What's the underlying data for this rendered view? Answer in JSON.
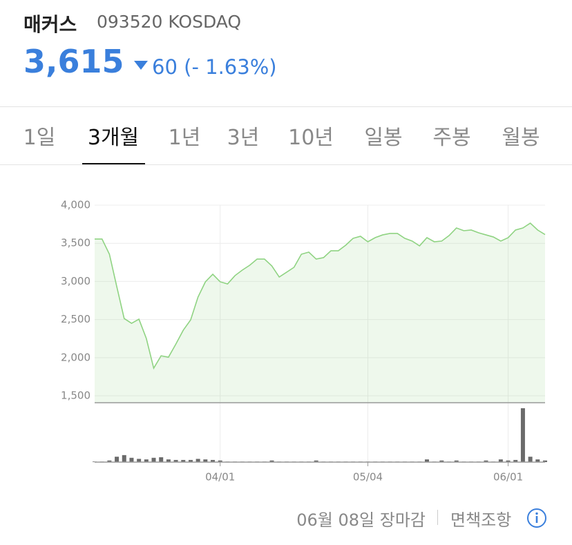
{
  "header": {
    "name": "매커스",
    "code": "093520 KOSDAQ",
    "price": "3,615",
    "change": "60",
    "change_pct": "(- 1.63%)"
  },
  "tabs": {
    "items": [
      "1일",
      "3개월",
      "1년",
      "3년",
      "10년",
      "일봉",
      "주봉",
      "월봉"
    ],
    "active": 1
  },
  "chart_data": {
    "type": "line",
    "categories": [
      null,
      null,
      null,
      null,
      null,
      null,
      null,
      null,
      null,
      null,
      null,
      null,
      null,
      null,
      null,
      null,
      null,
      "04/01",
      null,
      null,
      null,
      null,
      null,
      null,
      null,
      null,
      null,
      null,
      null,
      null,
      null,
      null,
      null,
      null,
      null,
      null,
      null,
      "05/04",
      null,
      null,
      null,
      null,
      null,
      null,
      null,
      null,
      null,
      null,
      null,
      null,
      null,
      null,
      null,
      null,
      null,
      null,
      "06/01",
      null,
      null,
      null,
      null,
      null
    ],
    "series": [
      {
        "color": "#8fd382",
        "values": [
          3556,
          3556,
          3357,
          2931,
          2514,
          2451,
          2505,
          2252,
          1862,
          2025,
          2007,
          2179,
          2360,
          2496,
          2795,
          2995,
          3094,
          2995,
          2967,
          3076,
          3149,
          3212,
          3293,
          3293,
          3203,
          3058,
          3121,
          3185,
          3357,
          3384,
          3293,
          3312,
          3402,
          3402,
          3475,
          3565,
          3592,
          3520,
          3574,
          3610,
          3629,
          3629,
          3565,
          3529,
          3466,
          3574,
          3520,
          3529,
          3601,
          3701,
          3665,
          3674,
          3638,
          3610,
          3583,
          3529,
          3574,
          3674,
          3701,
          3764,
          3674,
          3615
        ]
      }
    ],
    "volume": {
      "color": "#6b6b6b",
      "values": [
        1,
        1,
        3,
        10,
        13,
        8,
        6,
        5,
        8,
        9,
        5,
        4,
        4,
        4,
        6,
        5,
        4,
        3,
        1,
        1,
        1,
        1,
        1,
        1,
        3,
        1,
        1,
        1,
        1,
        1,
        3,
        1,
        1,
        1,
        1,
        1,
        1,
        1,
        1,
        1,
        1,
        1,
        1,
        1,
        1,
        5,
        1,
        3,
        1,
        3,
        1,
        1,
        1,
        3,
        1,
        5,
        3,
        4,
        100,
        10,
        5,
        3
      ]
    },
    "ylim": [
      1410,
      4000
    ],
    "yticks": [
      {
        "value": 1500,
        "label": "1,500"
      },
      {
        "value": 2000,
        "label": "2,000"
      },
      {
        "value": 2500,
        "label": "2,500"
      },
      {
        "value": 3000,
        "label": "3,000"
      },
      {
        "value": 3500,
        "label": "3,500"
      },
      {
        "value": 4000,
        "label": "4,000"
      }
    ],
    "grid": true
  },
  "footer": {
    "status": "06월 08일 장마감",
    "disclaimer": "면책조항"
  }
}
